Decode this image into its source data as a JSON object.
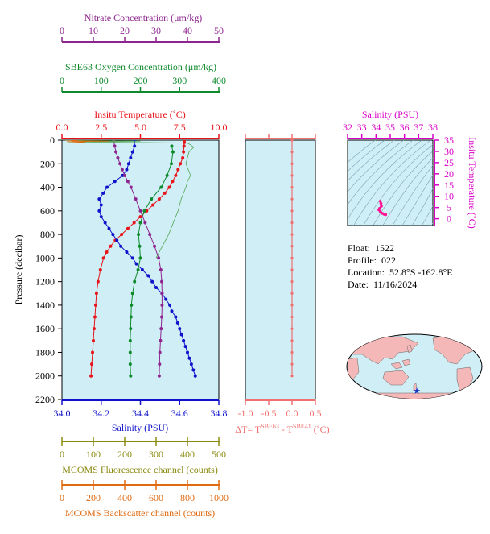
{
  "float_info": {
    "float_label": "Float:",
    "float_value": "1522",
    "profile_label": "Profile:",
    "profile_value": "022",
    "location_label": "Location:",
    "location_value": "52.8°S  -162.8°E",
    "date_label": "Date:",
    "date_value": "11/16/2024"
  },
  "colors": {
    "nitrate": "#8e258e",
    "oxygen": "#0e8a2c",
    "temperature": "#e8141a",
    "salinity": "#1111cc",
    "fluorescence": "#8a8a10",
    "backscatter": "#e06a10",
    "delta_t": "#f07070",
    "ts_axis": "#d800c8",
    "panel_bg": "#d0eef6"
  },
  "chart_data": [
    {
      "type": "line",
      "ylabel": "Pressure (decibar)",
      "ylim": [
        2200,
        0
      ],
      "y_ticks": [
        0,
        200,
        400,
        600,
        800,
        1000,
        1200,
        1400,
        1600,
        1800,
        2000,
        2200
      ],
      "grid": false,
      "axes": {
        "nitrate": {
          "label": "Nitrate Concentration (μm/kg)",
          "range": [
            0,
            50
          ],
          "ticks": [
            0,
            10,
            20,
            30,
            40,
            50
          ]
        },
        "oxygen": {
          "label": "SBE63 Oxygen Concentration (μm/kg)",
          "range": [
            0,
            400
          ],
          "ticks": [
            0,
            100,
            200,
            300,
            400
          ]
        },
        "temperature": {
          "label": "Insitu Temperature (˚C)",
          "range": [
            0,
            10
          ],
          "ticks": [
            "0.0",
            "2.5",
            "5.0",
            "7.5",
            "10.0"
          ]
        },
        "salinity": {
          "label": "Salinity (PSU)",
          "range": [
            34.0,
            34.8
          ],
          "ticks": [
            "34.0",
            "34.2",
            "34.4",
            "34.6",
            "34.8"
          ]
        },
        "fluorescence": {
          "label": "MCOMS Fluorescence channel (counts)",
          "range": [
            0,
            500
          ],
          "ticks": [
            0,
            100,
            200,
            300,
            400,
            500
          ]
        },
        "backscatter": {
          "label": "MCOMS Backscatter channel (counts)",
          "range": [
            0,
            1000
          ],
          "ticks": [
            0,
            200,
            400,
            600,
            800,
            1000
          ]
        }
      },
      "series": [
        {
          "name": "Insitu Temperature",
          "color_key": "temperature",
          "axis": "temperature",
          "markers": true,
          "points": [
            [
              7.8,
              0
            ],
            [
              7.8,
              20
            ],
            [
              7.78,
              50
            ],
            [
              7.75,
              100
            ],
            [
              7.7,
              150
            ],
            [
              7.55,
              200
            ],
            [
              7.4,
              250
            ],
            [
              7.25,
              300
            ],
            [
              7.05,
              350
            ],
            [
              6.85,
              400
            ],
            [
              6.55,
              450
            ],
            [
              6.2,
              500
            ],
            [
              5.8,
              550
            ],
            [
              5.4,
              600
            ],
            [
              5.0,
              650
            ],
            [
              4.6,
              700
            ],
            [
              4.2,
              750
            ],
            [
              3.8,
              800
            ],
            [
              3.4,
              850
            ],
            [
              3.1,
              900
            ],
            [
              2.85,
              950
            ],
            [
              2.65,
              1000
            ],
            [
              2.45,
              1100
            ],
            [
              2.3,
              1200
            ],
            [
              2.2,
              1300
            ],
            [
              2.15,
              1400
            ],
            [
              2.1,
              1500
            ],
            [
              2.05,
              1600
            ],
            [
              2.0,
              1700
            ],
            [
              1.95,
              1800
            ],
            [
              1.9,
              1900
            ],
            [
              1.85,
              2000
            ]
          ]
        },
        {
          "name": "Salinity",
          "color_key": "salinity",
          "axis": "salinity",
          "markers": true,
          "points": [
            [
              34.37,
              0
            ],
            [
              34.37,
              50
            ],
            [
              34.36,
              100
            ],
            [
              34.35,
              150
            ],
            [
              34.34,
              200
            ],
            [
              34.33,
              250
            ],
            [
              34.31,
              300
            ],
            [
              34.27,
              350
            ],
            [
              34.23,
              400
            ],
            [
              34.21,
              450
            ],
            [
              34.19,
              500
            ],
            [
              34.2,
              550
            ],
            [
              34.19,
              600
            ],
            [
              34.2,
              650
            ],
            [
              34.22,
              700
            ],
            [
              34.24,
              750
            ],
            [
              34.26,
              800
            ],
            [
              34.28,
              850
            ],
            [
              34.3,
              900
            ],
            [
              34.33,
              950
            ],
            [
              34.36,
              1000
            ],
            [
              34.38,
              1050
            ],
            [
              34.41,
              1100
            ],
            [
              34.44,
              1150
            ],
            [
              34.46,
              1200
            ],
            [
              34.48,
              1250
            ],
            [
              34.51,
              1300
            ],
            [
              34.53,
              1350
            ],
            [
              34.55,
              1400
            ],
            [
              34.56,
              1450
            ],
            [
              34.58,
              1500
            ],
            [
              34.59,
              1550
            ],
            [
              34.6,
              1600
            ],
            [
              34.61,
              1650
            ],
            [
              34.62,
              1700
            ],
            [
              34.63,
              1750
            ],
            [
              34.64,
              1800
            ],
            [
              34.65,
              1850
            ],
            [
              34.66,
              1900
            ],
            [
              34.67,
              1950
            ],
            [
              34.68,
              2000
            ]
          ]
        },
        {
          "name": "SBE63 Oxygen",
          "color_key": "oxygen",
          "axis": "oxygen",
          "markers": true,
          "points": [
            [
              280,
              50
            ],
            [
              283,
              100
            ],
            [
              279,
              200
            ],
            [
              268,
              300
            ],
            [
              253,
              400
            ],
            [
              228,
              500
            ],
            [
              210,
              600
            ],
            [
              200,
              700
            ],
            [
              195,
              800
            ],
            [
              198,
              900
            ],
            [
              200,
              1000
            ],
            [
              194,
              1100
            ],
            [
              185,
              1200
            ],
            [
              180,
              1300
            ],
            [
              177,
              1400
            ],
            [
              176,
              1500
            ],
            [
              175,
              1600
            ],
            [
              174,
              1700
            ],
            [
              174,
              1800
            ],
            [
              174,
              1900
            ],
            [
              175,
              2000
            ]
          ]
        },
        {
          "name": "Nitrate",
          "color_key": "nitrate",
          "axis": "nitrate",
          "markers": true,
          "points": [
            [
              16.5,
              0
            ],
            [
              16.8,
              50
            ],
            [
              17.2,
              100
            ],
            [
              17.8,
              150
            ],
            [
              18.5,
              200
            ],
            [
              19.2,
              250
            ],
            [
              20.0,
              300
            ],
            [
              21.0,
              350
            ],
            [
              22.0,
              400
            ],
            [
              23.5,
              500
            ],
            [
              25.0,
              600
            ],
            [
              26.5,
              700
            ],
            [
              28.0,
              800
            ],
            [
              29.5,
              900
            ],
            [
              30.8,
              1000
            ],
            [
              31.5,
              1100
            ],
            [
              31.8,
              1200
            ],
            [
              31.9,
              1300
            ],
            [
              31.9,
              1400
            ],
            [
              31.8,
              1500
            ],
            [
              31.6,
              1600
            ],
            [
              31.4,
              1700
            ],
            [
              31.2,
              1800
            ],
            [
              31.1,
              1900
            ],
            [
              31.0,
              2000
            ]
          ]
        },
        {
          "name": "MCOMS Fluorescence",
          "color_key": "oxygen",
          "axis": "fluorescence",
          "markers": false,
          "points": [
            [
              10,
              2
            ],
            [
              250,
              8
            ],
            [
              20,
              14
            ],
            [
              400,
              24
            ],
            [
              410,
              40
            ],
            [
              420,
              60
            ],
            [
              405,
              100
            ],
            [
              395,
              200
            ],
            [
              410,
              300
            ],
            [
              400,
              350
            ],
            [
              395,
              400
            ],
            [
              380,
              500
            ],
            [
              370,
              600
            ],
            [
              355,
              700
            ],
            [
              340,
              800
            ],
            [
              320,
              900
            ],
            [
              300,
              1000
            ]
          ]
        },
        {
          "name": "MCOMS Backscatter",
          "color_key": "backscatter",
          "axis": "backscatter",
          "markers": false,
          "points": [
            [
              20,
              0
            ],
            [
              100,
              2
            ],
            [
              60,
              6
            ],
            [
              300,
              8
            ],
            [
              30,
              12
            ],
            [
              150,
              18
            ],
            [
              40,
              24
            ]
          ]
        }
      ]
    },
    {
      "type": "line",
      "xlabel": "ΔT= Tˢᴮᴱ⁶³ - Tˢᴮᴱ⁴¹ (˚C)",
      "xlabel_parts": {
        "lead": "ΔT= T",
        "sup1": "SBE63",
        "mid": " - T",
        "sup2": "SBE41",
        "tail": " (˚C)"
      },
      "xlim": [
        -1.0,
        0.5
      ],
      "x_ticks": [
        "-1.0",
        "-0.5",
        "0.0",
        "0.5"
      ],
      "ylim": [
        2200,
        0
      ],
      "series": [
        {
          "name": "Delta T",
          "color_key": "delta_t",
          "points": [
            [
              0.0,
              0
            ],
            [
              0.0,
              100
            ],
            [
              0.0,
              200
            ],
            [
              0.0,
              300
            ],
            [
              0.0,
              400
            ],
            [
              0.0,
              500
            ],
            [
              0.0,
              600
            ],
            [
              0.0,
              700
            ],
            [
              0.0,
              800
            ],
            [
              0.0,
              900
            ],
            [
              0.0,
              1000
            ],
            [
              0.0,
              1100
            ],
            [
              0.0,
              1200
            ],
            [
              0.0,
              1300
            ],
            [
              0.0,
              1400
            ],
            [
              0.0,
              1500
            ],
            [
              0.0,
              1600
            ],
            [
              0.0,
              1700
            ],
            [
              0.0,
              1800
            ],
            [
              0.0,
              1900
            ],
            [
              0.0,
              2000
            ]
          ]
        }
      ]
    },
    {
      "type": "scatter",
      "xlabel": "Salinity (PSU)",
      "ylabel": "Insitu Temperature (˚C)",
      "xlim": [
        32,
        38
      ],
      "ylim": [
        -3,
        35
      ],
      "x_ticks": [
        32,
        33,
        34,
        35,
        36,
        37,
        38
      ],
      "y_ticks": [
        0,
        5,
        10,
        15,
        20,
        25,
        30,
        35
      ],
      "series": [
        {
          "name": "T-S profile",
          "color_key": "ts_axis",
          "points": [
            [
              34.3,
              7.8
            ],
            [
              34.35,
              6.8
            ],
            [
              34.38,
              5.6
            ],
            [
              34.25,
              4.6
            ],
            [
              34.2,
              4.0
            ],
            [
              34.3,
              3.2
            ],
            [
              34.45,
              2.4
            ],
            [
              34.58,
              2.0
            ],
            [
              34.68,
              1.85
            ]
          ]
        }
      ]
    }
  ]
}
